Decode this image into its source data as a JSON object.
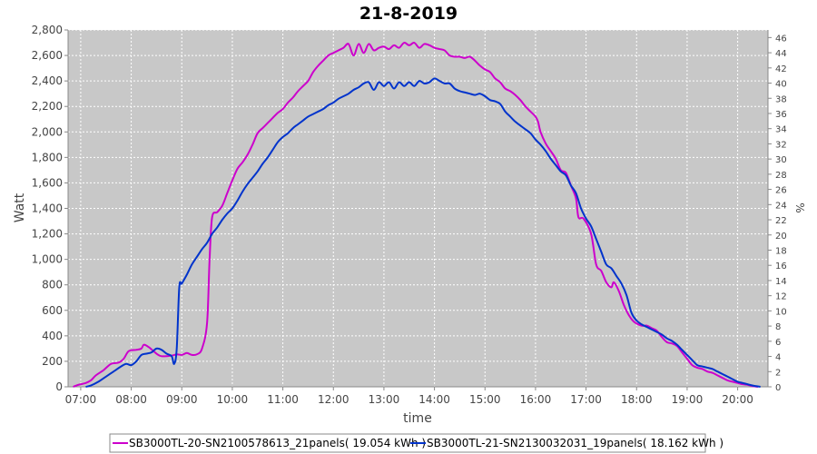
{
  "chart_data": {
    "type": "line",
    "title": "21-8-2019",
    "xlabel": "time",
    "ylabel": "Watt",
    "y2label": "%",
    "xlim": [
      6.75,
      20.6
    ],
    "ylim": [
      0,
      2800
    ],
    "y2lim": [
      0,
      47
    ],
    "x_ticks": [
      "07:00",
      "08:00",
      "09:00",
      "10:00",
      "11:00",
      "12:00",
      "13:00",
      "14:00",
      "15:00",
      "16:00",
      "17:00",
      "18:00",
      "19:00",
      "20:00"
    ],
    "y_ticks": [
      "0",
      "200",
      "400",
      "600",
      "800",
      "1,000",
      "1,200",
      "1,400",
      "1,600",
      "1,800",
      "2,000",
      "2,200",
      "2,400",
      "2,600",
      "2,800"
    ],
    "y2_ticks": [
      "0",
      "2",
      "4",
      "6",
      "8",
      "10",
      "12",
      "14",
      "16",
      "18",
      "20",
      "22",
      "24",
      "26",
      "28",
      "30",
      "32",
      "34",
      "36",
      "38",
      "40",
      "42",
      "44",
      "46"
    ],
    "grid": true,
    "legend_position": "bottom",
    "series": [
      {
        "name": "SB3000TL-20-SN2100578613_21panels( 19.054 kWh )",
        "color": "#cc00cc",
        "points": [
          [
            6.85,
            0
          ],
          [
            6.95,
            15
          ],
          [
            7.1,
            30
          ],
          [
            7.2,
            50
          ],
          [
            7.3,
            90
          ],
          [
            7.45,
            130
          ],
          [
            7.6,
            180
          ],
          [
            7.75,
            190
          ],
          [
            7.85,
            220
          ],
          [
            7.95,
            280
          ],
          [
            8.1,
            290
          ],
          [
            8.2,
            300
          ],
          [
            8.25,
            330
          ],
          [
            8.35,
            310
          ],
          [
            8.5,
            260
          ],
          [
            8.6,
            240
          ],
          [
            8.8,
            245
          ],
          [
            8.9,
            255
          ],
          [
            9.0,
            250
          ],
          [
            9.1,
            265
          ],
          [
            9.2,
            250
          ],
          [
            9.3,
            255
          ],
          [
            9.4,
            300
          ],
          [
            9.5,
            500
          ],
          [
            9.55,
            1000
          ],
          [
            9.6,
            1330
          ],
          [
            9.7,
            1370
          ],
          [
            9.8,
            1420
          ],
          [
            9.9,
            1520
          ],
          [
            10.0,
            1620
          ],
          [
            10.1,
            1710
          ],
          [
            10.2,
            1760
          ],
          [
            10.3,
            1820
          ],
          [
            10.4,
            1900
          ],
          [
            10.5,
            1990
          ],
          [
            10.6,
            2030
          ],
          [
            10.7,
            2070
          ],
          [
            10.8,
            2110
          ],
          [
            10.9,
            2150
          ],
          [
            11.0,
            2180
          ],
          [
            11.1,
            2230
          ],
          [
            11.2,
            2270
          ],
          [
            11.3,
            2320
          ],
          [
            11.4,
            2360
          ],
          [
            11.5,
            2400
          ],
          [
            11.6,
            2470
          ],
          [
            11.7,
            2520
          ],
          [
            11.8,
            2560
          ],
          [
            11.9,
            2600
          ],
          [
            12.0,
            2620
          ],
          [
            12.1,
            2640
          ],
          [
            12.2,
            2660
          ],
          [
            12.3,
            2690
          ],
          [
            12.4,
            2600
          ],
          [
            12.5,
            2690
          ],
          [
            12.6,
            2620
          ],
          [
            12.7,
            2690
          ],
          [
            12.8,
            2640
          ],
          [
            12.9,
            2660
          ],
          [
            13.0,
            2670
          ],
          [
            13.1,
            2650
          ],
          [
            13.2,
            2680
          ],
          [
            13.3,
            2660
          ],
          [
            13.4,
            2700
          ],
          [
            13.5,
            2680
          ],
          [
            13.6,
            2700
          ],
          [
            13.7,
            2660
          ],
          [
            13.8,
            2690
          ],
          [
            13.9,
            2680
          ],
          [
            14.0,
            2660
          ],
          [
            14.1,
            2650
          ],
          [
            14.2,
            2640
          ],
          [
            14.3,
            2600
          ],
          [
            14.4,
            2590
          ],
          [
            14.5,
            2590
          ],
          [
            14.6,
            2580
          ],
          [
            14.7,
            2590
          ],
          [
            14.8,
            2560
          ],
          [
            14.9,
            2520
          ],
          [
            15.0,
            2490
          ],
          [
            15.1,
            2470
          ],
          [
            15.2,
            2420
          ],
          [
            15.3,
            2390
          ],
          [
            15.4,
            2340
          ],
          [
            15.5,
            2320
          ],
          [
            15.6,
            2290
          ],
          [
            15.7,
            2250
          ],
          [
            15.8,
            2200
          ],
          [
            15.9,
            2160
          ],
          [
            16.0,
            2120
          ],
          [
            16.05,
            2080
          ],
          [
            16.1,
            2000
          ],
          [
            16.2,
            1910
          ],
          [
            16.3,
            1850
          ],
          [
            16.4,
            1790
          ],
          [
            16.5,
            1700
          ],
          [
            16.6,
            1680
          ],
          [
            16.7,
            1580
          ],
          [
            16.8,
            1480
          ],
          [
            16.85,
            1330
          ],
          [
            16.95,
            1320
          ],
          [
            17.1,
            1200
          ],
          [
            17.2,
            960
          ],
          [
            17.3,
            910
          ],
          [
            17.4,
            820
          ],
          [
            17.5,
            780
          ],
          [
            17.55,
            820
          ],
          [
            17.65,
            750
          ],
          [
            17.75,
            640
          ],
          [
            17.85,
            560
          ],
          [
            17.95,
            510
          ],
          [
            18.1,
            480
          ],
          [
            18.2,
            480
          ],
          [
            18.3,
            460
          ],
          [
            18.4,
            440
          ],
          [
            18.5,
            390
          ],
          [
            18.6,
            350
          ],
          [
            18.7,
            340
          ],
          [
            18.8,
            320
          ],
          [
            18.9,
            270
          ],
          [
            19.0,
            220
          ],
          [
            19.1,
            170
          ],
          [
            19.2,
            150
          ],
          [
            19.3,
            140
          ],
          [
            19.4,
            120
          ],
          [
            19.5,
            110
          ],
          [
            19.6,
            90
          ],
          [
            19.7,
            70
          ],
          [
            19.8,
            50
          ],
          [
            19.9,
            40
          ],
          [
            20.0,
            30
          ],
          [
            20.1,
            20
          ],
          [
            20.2,
            15
          ],
          [
            20.3,
            5
          ],
          [
            20.4,
            0
          ]
        ]
      },
      {
        "name": "SB3000TL-21-SN2130032031_19panels( 18.162 kWh )",
        "color": "#0033cc",
        "points": [
          [
            7.1,
            0
          ],
          [
            7.2,
            10
          ],
          [
            7.35,
            40
          ],
          [
            7.5,
            80
          ],
          [
            7.65,
            120
          ],
          [
            7.8,
            160
          ],
          [
            7.9,
            180
          ],
          [
            8.0,
            170
          ],
          [
            8.1,
            200
          ],
          [
            8.2,
            250
          ],
          [
            8.3,
            260
          ],
          [
            8.4,
            270
          ],
          [
            8.5,
            300
          ],
          [
            8.6,
            290
          ],
          [
            8.7,
            260
          ],
          [
            8.8,
            240
          ],
          [
            8.85,
            180
          ],
          [
            8.9,
            300
          ],
          [
            8.95,
            780
          ],
          [
            9.0,
            810
          ],
          [
            9.1,
            880
          ],
          [
            9.2,
            960
          ],
          [
            9.3,
            1020
          ],
          [
            9.4,
            1080
          ],
          [
            9.5,
            1130
          ],
          [
            9.6,
            1200
          ],
          [
            9.7,
            1250
          ],
          [
            9.8,
            1310
          ],
          [
            9.9,
            1360
          ],
          [
            10.0,
            1400
          ],
          [
            10.1,
            1460
          ],
          [
            10.2,
            1530
          ],
          [
            10.3,
            1590
          ],
          [
            10.4,
            1640
          ],
          [
            10.5,
            1690
          ],
          [
            10.6,
            1750
          ],
          [
            10.7,
            1800
          ],
          [
            10.8,
            1860
          ],
          [
            10.9,
            1920
          ],
          [
            11.0,
            1960
          ],
          [
            11.1,
            1990
          ],
          [
            11.2,
            2030
          ],
          [
            11.3,
            2060
          ],
          [
            11.4,
            2090
          ],
          [
            11.5,
            2120
          ],
          [
            11.6,
            2140
          ],
          [
            11.7,
            2160
          ],
          [
            11.8,
            2180
          ],
          [
            11.9,
            2210
          ],
          [
            12.0,
            2230
          ],
          [
            12.1,
            2260
          ],
          [
            12.2,
            2280
          ],
          [
            12.3,
            2300
          ],
          [
            12.4,
            2330
          ],
          [
            12.5,
            2350
          ],
          [
            12.6,
            2380
          ],
          [
            12.7,
            2390
          ],
          [
            12.8,
            2330
          ],
          [
            12.9,
            2390
          ],
          [
            13.0,
            2360
          ],
          [
            13.1,
            2390
          ],
          [
            13.2,
            2340
          ],
          [
            13.3,
            2390
          ],
          [
            13.4,
            2360
          ],
          [
            13.5,
            2390
          ],
          [
            13.6,
            2360
          ],
          [
            13.7,
            2400
          ],
          [
            13.8,
            2380
          ],
          [
            13.9,
            2390
          ],
          [
            14.0,
            2420
          ],
          [
            14.1,
            2400
          ],
          [
            14.2,
            2380
          ],
          [
            14.3,
            2380
          ],
          [
            14.4,
            2340
          ],
          [
            14.5,
            2320
          ],
          [
            14.6,
            2310
          ],
          [
            14.7,
            2300
          ],
          [
            14.8,
            2290
          ],
          [
            14.9,
            2300
          ],
          [
            15.0,
            2280
          ],
          [
            15.1,
            2250
          ],
          [
            15.2,
            2240
          ],
          [
            15.3,
            2220
          ],
          [
            15.4,
            2160
          ],
          [
            15.5,
            2120
          ],
          [
            15.6,
            2080
          ],
          [
            15.7,
            2050
          ],
          [
            15.8,
            2020
          ],
          [
            15.9,
            1990
          ],
          [
            16.0,
            1940
          ],
          [
            16.1,
            1900
          ],
          [
            16.2,
            1850
          ],
          [
            16.3,
            1790
          ],
          [
            16.4,
            1740
          ],
          [
            16.5,
            1690
          ],
          [
            16.6,
            1660
          ],
          [
            16.7,
            1580
          ],
          [
            16.8,
            1520
          ],
          [
            16.9,
            1400
          ],
          [
            17.0,
            1320
          ],
          [
            17.1,
            1260
          ],
          [
            17.2,
            1160
          ],
          [
            17.3,
            1060
          ],
          [
            17.4,
            960
          ],
          [
            17.5,
            930
          ],
          [
            17.6,
            870
          ],
          [
            17.7,
            810
          ],
          [
            17.8,
            720
          ],
          [
            17.9,
            580
          ],
          [
            18.0,
            520
          ],
          [
            18.1,
            490
          ],
          [
            18.2,
            470
          ],
          [
            18.3,
            450
          ],
          [
            18.4,
            430
          ],
          [
            18.5,
            410
          ],
          [
            18.6,
            380
          ],
          [
            18.7,
            360
          ],
          [
            18.8,
            330
          ],
          [
            18.9,
            290
          ],
          [
            19.0,
            250
          ],
          [
            19.1,
            210
          ],
          [
            19.2,
            170
          ],
          [
            19.3,
            160
          ],
          [
            19.4,
            150
          ],
          [
            19.5,
            140
          ],
          [
            19.6,
            120
          ],
          [
            19.7,
            100
          ],
          [
            19.8,
            80
          ],
          [
            19.9,
            60
          ],
          [
            20.0,
            40
          ],
          [
            20.1,
            30
          ],
          [
            20.2,
            20
          ],
          [
            20.3,
            10
          ],
          [
            20.45,
            0
          ]
        ]
      }
    ]
  }
}
